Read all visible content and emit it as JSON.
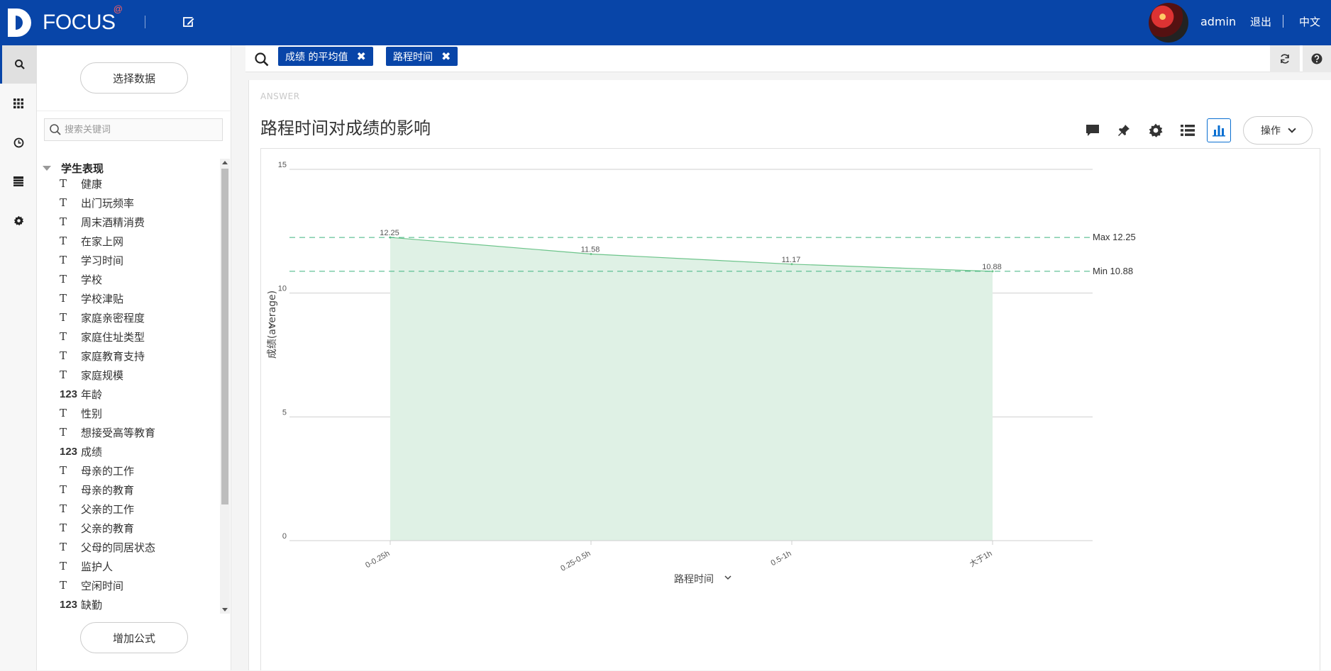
{
  "header": {
    "logo_text": "FOCUS",
    "logo_badge": "@",
    "user": "admin",
    "logout_label": "退出",
    "lang_label": "中文"
  },
  "data_panel": {
    "select_data_label": "选择数据",
    "search_placeholder": "搜索关键词",
    "group_label": "学生表现",
    "add_formula_label": "增加公式",
    "items": [
      {
        "type": "text",
        "type_icon": "T",
        "label": "健康"
      },
      {
        "type": "text",
        "type_icon": "T",
        "label": "出门玩频率"
      },
      {
        "type": "text",
        "type_icon": "T",
        "label": "周末酒精消费"
      },
      {
        "type": "text",
        "type_icon": "T",
        "label": "在家上网"
      },
      {
        "type": "text",
        "type_icon": "T",
        "label": "学习时间"
      },
      {
        "type": "text",
        "type_icon": "T",
        "label": "学校"
      },
      {
        "type": "text",
        "type_icon": "T",
        "label": "学校津贴"
      },
      {
        "type": "text",
        "type_icon": "T",
        "label": "家庭亲密程度"
      },
      {
        "type": "text",
        "type_icon": "T",
        "label": "家庭住址类型"
      },
      {
        "type": "text",
        "type_icon": "T",
        "label": "家庭教育支持"
      },
      {
        "type": "text",
        "type_icon": "T",
        "label": "家庭规模"
      },
      {
        "type": "number",
        "type_icon": "123",
        "label": "年龄"
      },
      {
        "type": "text",
        "type_icon": "T",
        "label": "性别"
      },
      {
        "type": "text",
        "type_icon": "T",
        "label": "想接受高等教育"
      },
      {
        "type": "number",
        "type_icon": "123",
        "label": "成绩"
      },
      {
        "type": "text",
        "type_icon": "T",
        "label": "母亲的工作"
      },
      {
        "type": "text",
        "type_icon": "T",
        "label": "母亲的教育"
      },
      {
        "type": "text",
        "type_icon": "T",
        "label": "父亲的工作"
      },
      {
        "type": "text",
        "type_icon": "T",
        "label": "父亲的教育"
      },
      {
        "type": "text",
        "type_icon": "T",
        "label": "父母的同居状态"
      },
      {
        "type": "text",
        "type_icon": "T",
        "label": "监护人"
      },
      {
        "type": "text",
        "type_icon": "T",
        "label": "空闲时间"
      },
      {
        "type": "number",
        "type_icon": "123",
        "label": "缺勤"
      }
    ]
  },
  "search": {
    "tokens": [
      "成绩 的平均值",
      "路程时间"
    ]
  },
  "answer": {
    "section_label": "ANSWER",
    "title": "路程时间对成绩的影响",
    "ops_label": "操作"
  },
  "chart_data": {
    "type": "area",
    "categories": [
      "0-0.25h",
      "0.25-0.5h",
      "0.5-1h",
      "大于1h"
    ],
    "values": [
      12.25,
      11.58,
      11.17,
      10.88
    ],
    "value_labels": [
      "12.25",
      "11.58",
      "11.17",
      "10.88"
    ],
    "xlabel": "路程时间",
    "ylabel": "成绩(average)",
    "ylim": [
      0,
      15
    ],
    "yticks": [
      0,
      5,
      10,
      15
    ],
    "reference_lines": [
      {
        "label": "Max 12.25",
        "value": 12.25
      },
      {
        "label": "Min 10.88",
        "value": 10.88
      }
    ],
    "grid": true,
    "colors": {
      "area_fill": "#dff1e5",
      "line": "#6cc48a",
      "ref_line": "#3fb37f"
    }
  }
}
